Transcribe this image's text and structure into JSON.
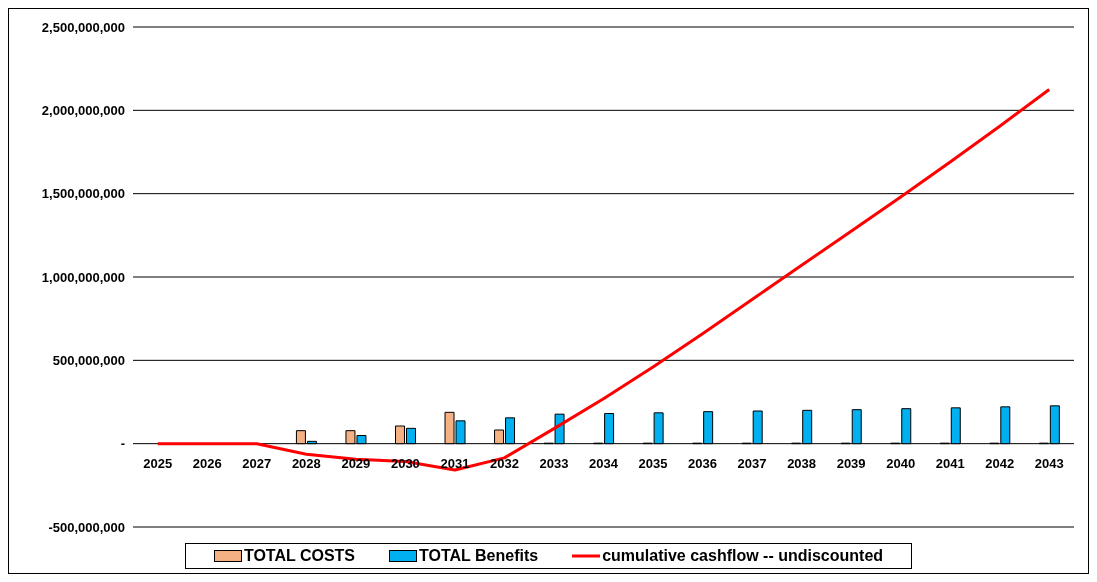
{
  "chart_data": {
    "type": "bar",
    "categories": [
      "2025",
      "2026",
      "2027",
      "2028",
      "2029",
      "2030",
      "2031",
      "2032",
      "2033",
      "2034",
      "2035",
      "2036",
      "2037",
      "2038",
      "2039",
      "2040",
      "2041",
      "2042",
      "2043"
    ],
    "series": [
      {
        "name": "TOTAL COSTS",
        "color": "#f4b183",
        "values": [
          0,
          0,
          0,
          78000000,
          78000000,
          106000000,
          188000000,
          82000000,
          3000000,
          3000000,
          3000000,
          3000000,
          3000000,
          3000000,
          3000000,
          3000000,
          3000000,
          3000000,
          3000000
        ]
      },
      {
        "name": "TOTAL Benefits",
        "color": "#00b0f0",
        "values": [
          0,
          0,
          0,
          14000000,
          49000000,
          92000000,
          137000000,
          155000000,
          177000000,
          181000000,
          185000000,
          192000000,
          196000000,
          200000000,
          204000000,
          210000000,
          215000000,
          221000000,
          227000000
        ]
      },
      {
        "name": "cumulative cashflow -- undiscounted",
        "type": "line",
        "color": "#ff0000",
        "values": [
          0,
          0,
          0,
          -64000000,
          -93000000,
          -107000000,
          -158000000,
          -85000000,
          90000000,
          270000000,
          460000000,
          660000000,
          865000000,
          1070000000,
          1275000000,
          1480000000,
          1690000000,
          1905000000,
          2125000000
        ]
      }
    ],
    "ylim": [
      -500000000,
      2500000000
    ],
    "yticks": [
      {
        "value": -500000000,
        "label": "-500,000,000"
      },
      {
        "value": 0,
        "label": "-"
      },
      {
        "value": 500000000,
        "label": "500,000,000"
      },
      {
        "value": 1000000000,
        "label": "1,000,000,000"
      },
      {
        "value": 1500000000,
        "label": "1,500,000,000"
      },
      {
        "value": 2000000000,
        "label": "2,000,000,000"
      },
      {
        "value": 2500000000,
        "label": "2,500,000,000"
      }
    ],
    "grid": "y",
    "legend": "bottom",
    "marker": "none",
    "line_style": "solid"
  }
}
